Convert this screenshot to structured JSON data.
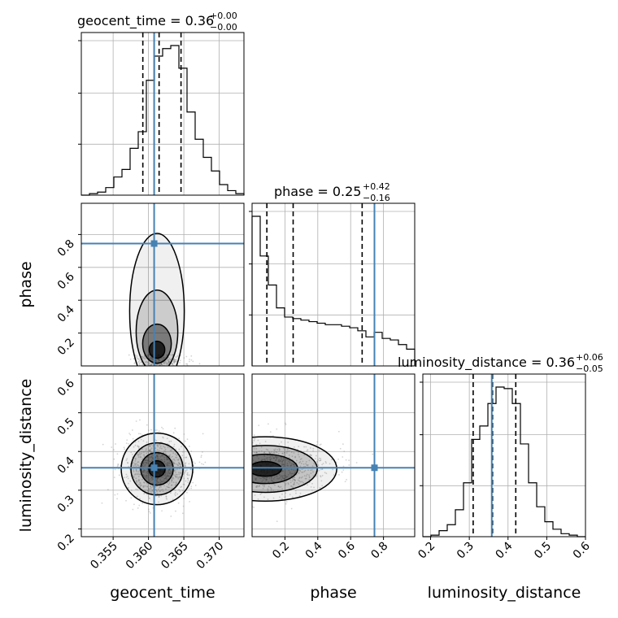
{
  "chart_data": {
    "type": "corner",
    "parameters": [
      "geocent_time",
      "phase",
      "luminosity_distance"
    ],
    "axis_labels": {
      "geocent_time": "geocent_time",
      "phase": "phase",
      "luminosity_distance": "luminosity_distance"
    },
    "truths": {
      "geocent_time": 0.3608,
      "phase": 0.745,
      "luminosity_distance": 0.358
    },
    "ranges": {
      "geocent_time": [
        0.3505,
        0.3735
      ],
      "phase": [
        0.0,
        0.99
      ],
      "luminosity_distance": [
        0.18,
        0.6
      ]
    },
    "ticks": {
      "geocent_time": [
        "0.355",
        "0.360",
        "0.365",
        "0.370"
      ],
      "phase": [
        "0.2",
        "0.4",
        "0.6",
        "0.8"
      ],
      "luminosity_distance": [
        "0.2",
        "0.3",
        "0.4",
        "0.5",
        "0.6"
      ]
    },
    "titles": {
      "geocent_time": {
        "text": "geocent_time = 0.36",
        "plus": "+0.00",
        "minus": "−0.00"
      },
      "phase": {
        "text": "phase = 0.25",
        "plus": "+0.42",
        "minus": "−0.16"
      },
      "luminosity_distance": {
        "text": "luminosity_distance = 0.36",
        "plus": "+0.06",
        "minus": "−0.05"
      }
    },
    "quantiles": {
      "geocent_time": [
        0.3592,
        0.3615,
        0.3646
      ],
      "phase": [
        0.09,
        0.25,
        0.67
      ],
      "luminosity_distance": [
        0.31,
        0.36,
        0.42
      ]
    },
    "histograms": {
      "geocent_time": {
        "edges_range": [
          0.3505,
          0.3735
        ],
        "counts": [
          0,
          0.01,
          0.02,
          0.05,
          0.12,
          0.17,
          0.31,
          0.42,
          0.76,
          0.92,
          0.97,
          0.99,
          0.84,
          0.55,
          0.37,
          0.25,
          0.16,
          0.07,
          0.03,
          0.01
        ]
      },
      "phase": {
        "edges_range": [
          0.0,
          0.99
        ],
        "counts": [
          0.98,
          0.72,
          0.53,
          0.38,
          0.32,
          0.31,
          0.3,
          0.29,
          0.28,
          0.27,
          0.27,
          0.26,
          0.25,
          0.23,
          0.19,
          0.22,
          0.18,
          0.17,
          0.14,
          0.11
        ]
      },
      "luminosity_distance": {
        "edges_range": [
          0.18,
          0.6
        ],
        "counts": [
          0,
          0.01,
          0.04,
          0.08,
          0.18,
          0.36,
          0.65,
          0.74,
          0.89,
          1.0,
          0.99,
          0.89,
          0.62,
          0.36,
          0.2,
          0.1,
          0.05,
          0.02,
          0.01,
          0.0
        ]
      }
    },
    "grid": true
  }
}
